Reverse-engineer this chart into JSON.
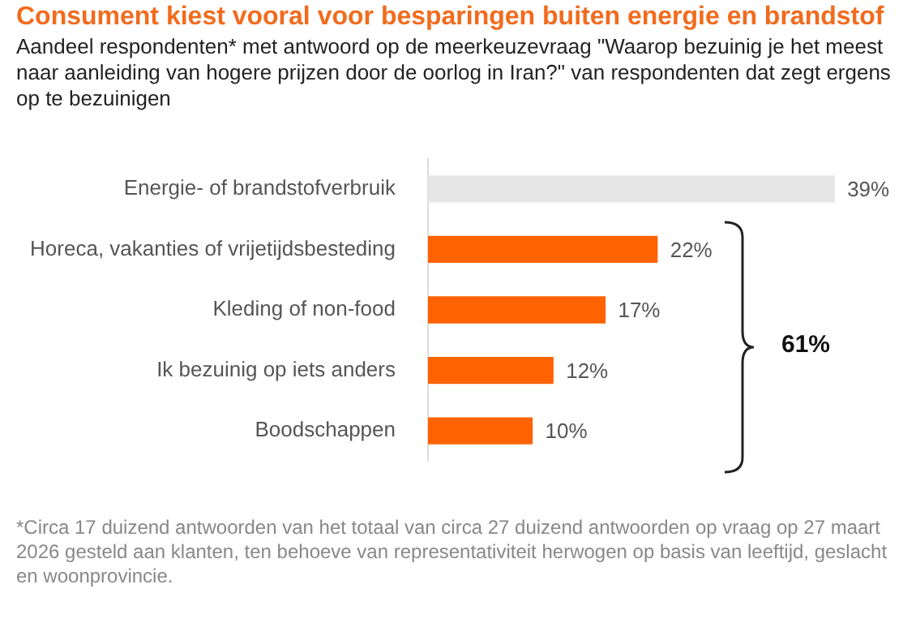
{
  "chart_data": {
    "type": "bar",
    "orientation": "horizontal",
    "title": "Consument kiest vooral voor besparingen buiten energie en brandstof",
    "subtitle": "Aandeel respondenten* met antwoord op de meerkeuzevraag \"Waarop bezuinig je het meest naar aanleiding van hogere prijzen door de oorlog in Iran?\" van respondenten dat zegt ergens op te bezuinigen",
    "categories": [
      "Energie- of brandstofverbruik",
      "Horeca, vakanties of vrijetijdsbesteding",
      "Kleding of non-food",
      "Ik bezuinig op iets anders",
      "Boodschappen"
    ],
    "values": [
      39,
      22,
      17,
      12,
      10
    ],
    "value_labels": [
      "39%",
      "22%",
      "17%",
      "12%",
      "10%"
    ],
    "colors": [
      "#e6e6e6",
      "#ff6200",
      "#ff6200",
      "#ff6200",
      "#ff6200"
    ],
    "annotations": [
      "61%",
      "*Circa 17 duizend antwoorden van het totaal van circa 27 duizend antwoorden op vraag op 27 maart 2026 gesteld aan klanten, ten behoeve van representativiteit herwogen op basis van leeftijd, geslacht en woonprovincie."
    ],
    "grid": false,
    "legend": false
  }
}
